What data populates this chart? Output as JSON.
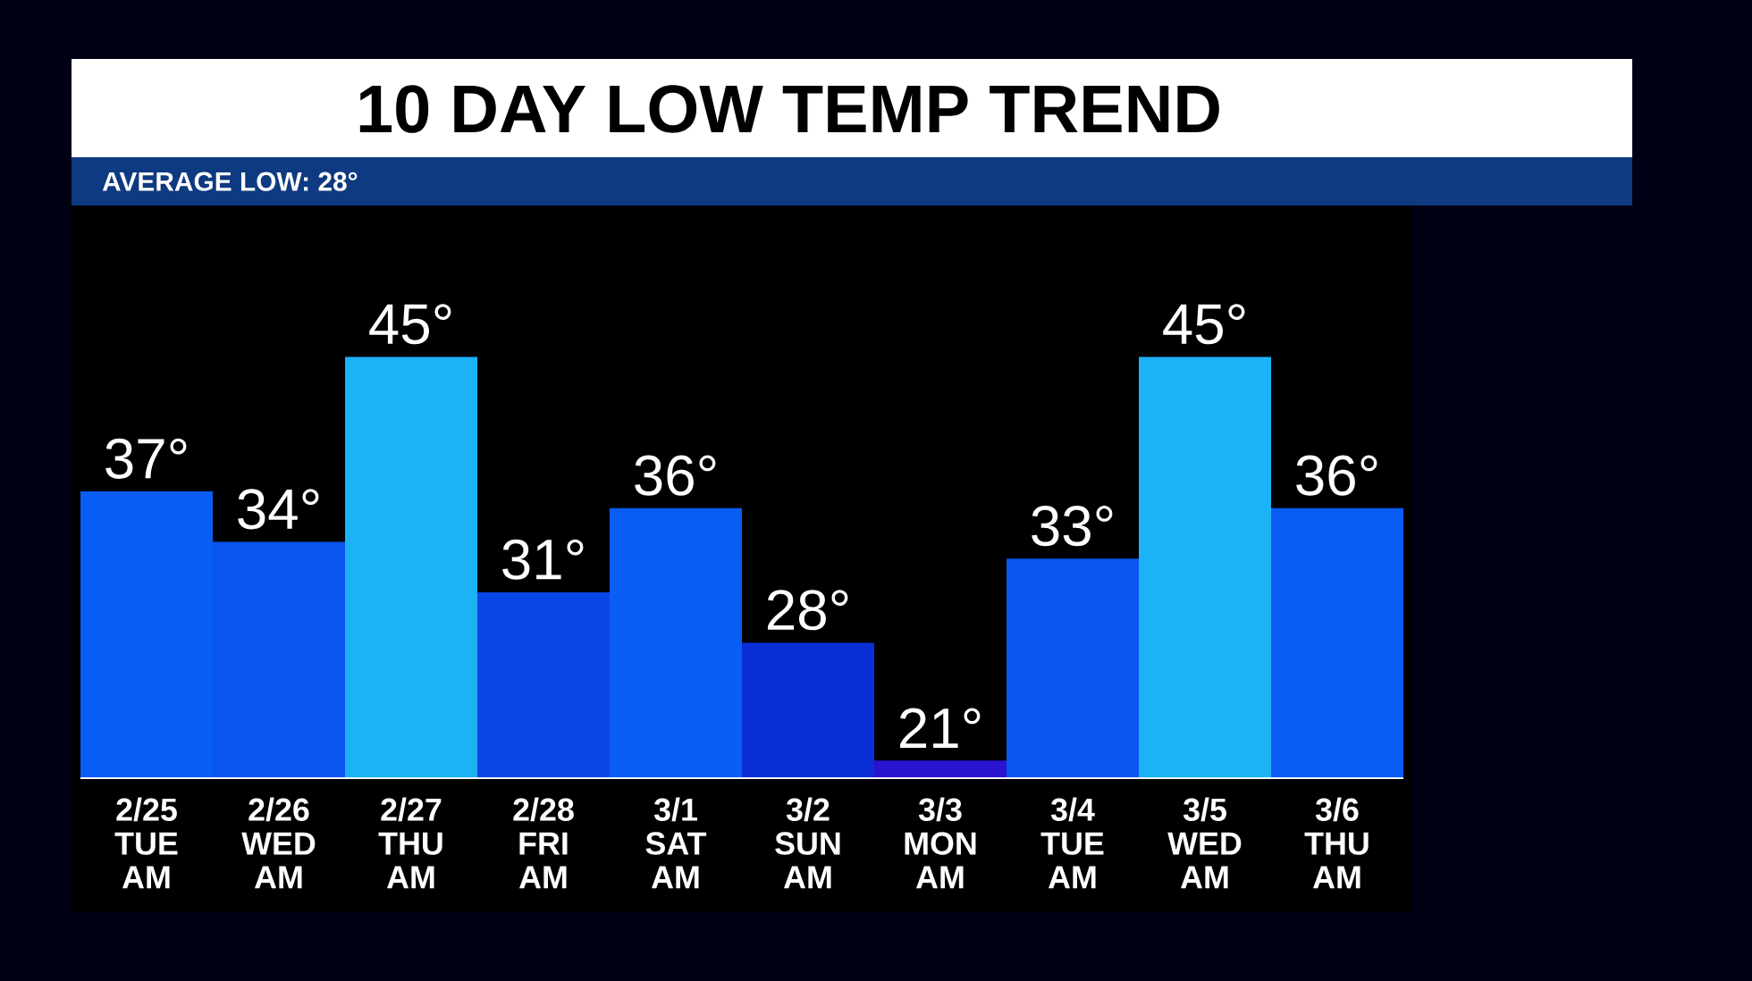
{
  "chart_data": {
    "type": "bar",
    "title": "10 DAY LOW TEMP TREND",
    "subtitle": "AVERAGE LOW: 28°",
    "categories": [
      "2/25 TUE AM",
      "2/26 WED AM",
      "2/27 THU AM",
      "2/28 FRI AM",
      "3/1 SAT AM",
      "3/2 SUN AM",
      "3/3 MON AM",
      "3/4 TUE AM",
      "3/5 WED AM",
      "3/6 THU AM"
    ],
    "values": [
      37,
      34,
      45,
      31,
      36,
      28,
      21,
      33,
      45,
      36
    ],
    "value_labels": [
      "37°",
      "34°",
      "45°",
      "31°",
      "36°",
      "28°",
      "21°",
      "33°",
      "45°",
      "36°"
    ],
    "colors": [
      "#0a5df5",
      "#0a55ef",
      "#1cb2f6",
      "#0a46e6",
      "#0a5df5",
      "#0a2fd6",
      "#2a14cf",
      "#0a55ef",
      "#1cb2f6",
      "#0a5df5"
    ],
    "ylim": [
      20,
      54
    ]
  }
}
